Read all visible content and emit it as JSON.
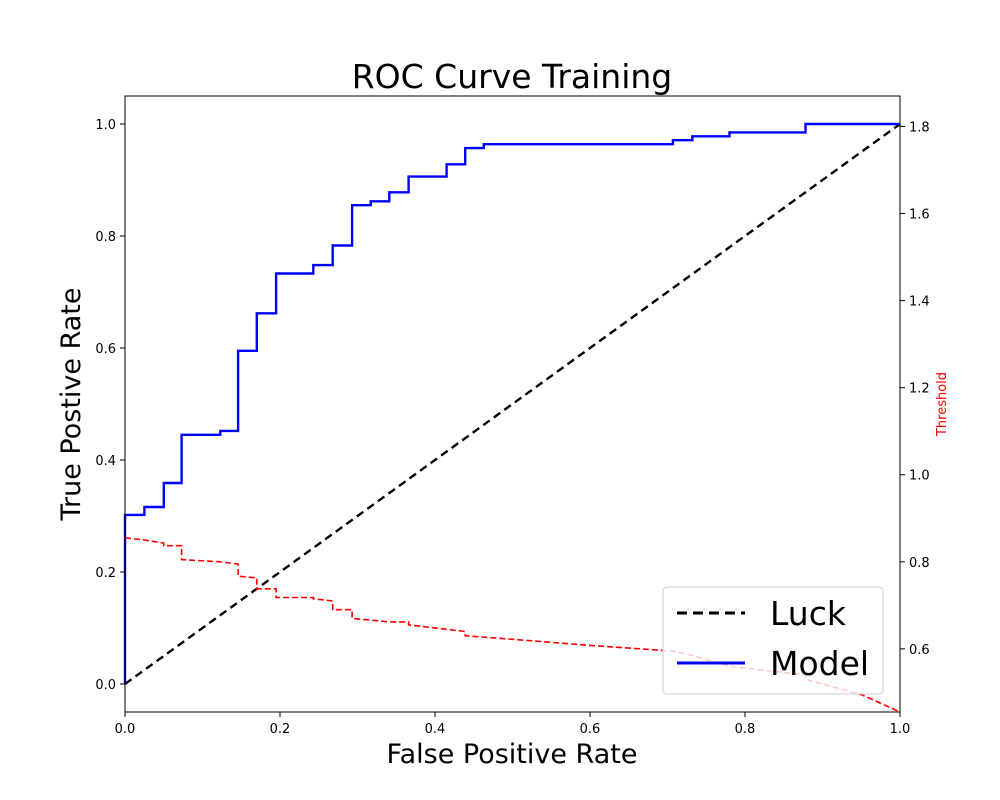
{
  "chart_data": {
    "type": "line",
    "title": "ROC Curve Training",
    "xlabel": "False Positive Rate",
    "ylabel": "True Postive Rate",
    "y2label": "Threshold",
    "xlim": [
      0,
      1
    ],
    "ylim": [
      -0.05,
      1.05
    ],
    "y2lim": [
      0.455,
      1.87
    ],
    "x_ticks": [
      "0.0",
      "0.2",
      "0.4",
      "0.6",
      "0.8",
      "1.0"
    ],
    "y_ticks": [
      "0.0",
      "0.2",
      "0.4",
      "0.6",
      "0.8",
      "1.0"
    ],
    "y2_ticks": [
      "0.6",
      "0.8",
      "1.0",
      "1.2",
      "1.4",
      "1.6",
      "1.8"
    ],
    "grid": false,
    "legend_position": "lower right",
    "series": [
      {
        "name": "Luck",
        "axis": "left",
        "style": "dashed",
        "color": "#000000",
        "points": [
          [
            0,
            0
          ],
          [
            1,
            1
          ]
        ]
      },
      {
        "name": "Model",
        "axis": "left",
        "style": "solid",
        "color": "#0000ff",
        "points": [
          [
            0,
            0
          ],
          [
            0,
            0.302
          ],
          [
            0.025,
            0.302
          ],
          [
            0.025,
            0.316
          ],
          [
            0.05,
            0.316
          ],
          [
            0.05,
            0.359
          ],
          [
            0.073,
            0.359
          ],
          [
            0.073,
            0.445
          ],
          [
            0.123,
            0.445
          ],
          [
            0.123,
            0.452
          ],
          [
            0.146,
            0.452
          ],
          [
            0.146,
            0.595
          ],
          [
            0.17,
            0.595
          ],
          [
            0.17,
            0.662
          ],
          [
            0.195,
            0.662
          ],
          [
            0.195,
            0.733
          ],
          [
            0.243,
            0.733
          ],
          [
            0.243,
            0.748
          ],
          [
            0.268,
            0.748
          ],
          [
            0.268,
            0.783
          ],
          [
            0.293,
            0.783
          ],
          [
            0.293,
            0.855
          ],
          [
            0.317,
            0.855
          ],
          [
            0.317,
            0.862
          ],
          [
            0.341,
            0.862
          ],
          [
            0.341,
            0.878
          ],
          [
            0.366,
            0.878
          ],
          [
            0.366,
            0.906
          ],
          [
            0.415,
            0.906
          ],
          [
            0.415,
            0.928
          ],
          [
            0.439,
            0.928
          ],
          [
            0.439,
            0.957
          ],
          [
            0.463,
            0.957
          ],
          [
            0.463,
            0.964
          ],
          [
            0.707,
            0.964
          ],
          [
            0.707,
            0.971
          ],
          [
            0.732,
            0.971
          ],
          [
            0.732,
            0.978
          ],
          [
            0.78,
            0.978
          ],
          [
            0.78,
            0.985
          ],
          [
            0.878,
            0.985
          ],
          [
            0.878,
            1.0
          ],
          [
            1.0,
            1.0
          ]
        ]
      },
      {
        "axis": "right",
        "style": "dashed",
        "color": "#ff0000",
        "points": [
          [
            0,
            0.855
          ],
          [
            0.025,
            0.85
          ],
          [
            0.05,
            0.843
          ],
          [
            0.05,
            0.837
          ],
          [
            0.073,
            0.837
          ],
          [
            0.073,
            0.805
          ],
          [
            0.123,
            0.8
          ],
          [
            0.146,
            0.795
          ],
          [
            0.146,
            0.767
          ],
          [
            0.17,
            0.763
          ],
          [
            0.17,
            0.738
          ],
          [
            0.195,
            0.738
          ],
          [
            0.195,
            0.718
          ],
          [
            0.243,
            0.718
          ],
          [
            0.243,
            0.715
          ],
          [
            0.268,
            0.71
          ],
          [
            0.268,
            0.69
          ],
          [
            0.293,
            0.69
          ],
          [
            0.293,
            0.67
          ],
          [
            0.341,
            0.662
          ],
          [
            0.366,
            0.662
          ],
          [
            0.366,
            0.655
          ],
          [
            0.415,
            0.645
          ],
          [
            0.439,
            0.64
          ],
          [
            0.439,
            0.63
          ],
          [
            0.5,
            0.622
          ],
          [
            0.6,
            0.608
          ],
          [
            0.707,
            0.595
          ],
          [
            0.732,
            0.585
          ],
          [
            0.78,
            0.56
          ],
          [
            0.878,
            0.54
          ],
          [
            0.878,
            0.53
          ],
          [
            0.95,
            0.495
          ],
          [
            1.0,
            0.455
          ]
        ]
      }
    ]
  }
}
